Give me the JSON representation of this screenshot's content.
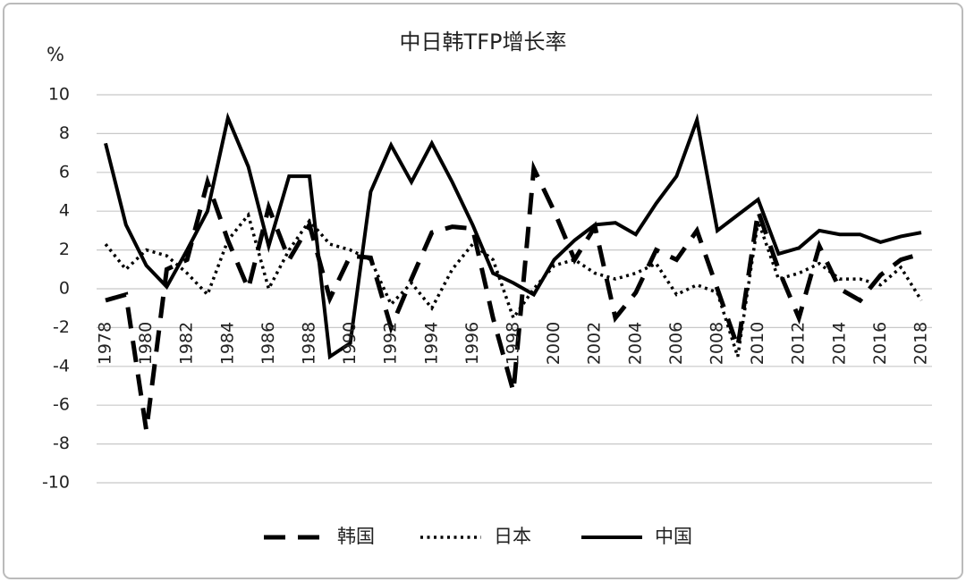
{
  "chart_data": {
    "type": "line",
    "title": "中日韩TFP增长率",
    "y_label": "%",
    "x": [
      1978,
      1979,
      1980,
      1981,
      1982,
      1983,
      1984,
      1985,
      1986,
      1987,
      1988,
      1989,
      1990,
      1991,
      1992,
      1993,
      1994,
      1995,
      1996,
      1997,
      1998,
      1999,
      2000,
      2001,
      2002,
      2003,
      2004,
      2005,
      2006,
      2007,
      2008,
      2009,
      2010,
      2011,
      2012,
      2013,
      2014,
      2015,
      2016,
      2017,
      2018
    ],
    "xlim": [
      1978,
      2018
    ],
    "xticks": [
      1978,
      1980,
      1982,
      1984,
      1986,
      1988,
      1990,
      1992,
      1994,
      1996,
      1998,
      2000,
      2002,
      2004,
      2006,
      2008,
      2010,
      2012,
      2014,
      2016,
      2018
    ],
    "ylim": [
      -10,
      10
    ],
    "yticks": [
      -10,
      -8,
      -6,
      -4,
      -2,
      0,
      2,
      4,
      6,
      8,
      10
    ],
    "grid": true,
    "legend": "bottom",
    "series": [
      {
        "name": "韩国",
        "color": "#000000",
        "dash": "dashed",
        "values": [
          -0.6,
          -0.3,
          -7.3,
          1.0,
          1.5,
          5.5,
          2.5,
          0.0,
          4.2,
          1.5,
          3.3,
          -0.5,
          1.7,
          1.6,
          -2.0,
          0.5,
          2.9,
          3.2,
          3.1,
          -1.5,
          -5.3,
          6.2,
          4.0,
          1.5,
          3.2,
          -1.5,
          -0.2,
          2.0,
          1.5,
          3.0,
          0.0,
          -3.0,
          4.0,
          1.0,
          -1.5,
          2.2,
          0.0,
          -0.6,
          0.7,
          1.5,
          1.8
        ]
      },
      {
        "name": "日本",
        "color": "#000000",
        "dash": "dotted",
        "values": [
          2.3,
          1.0,
          2.0,
          1.7,
          0.8,
          -0.3,
          2.5,
          3.8,
          0.0,
          2.0,
          3.5,
          2.3,
          2.0,
          1.5,
          -0.8,
          0.3,
          -1.0,
          1.0,
          2.3,
          1.5,
          -1.5,
          0.0,
          1.2,
          1.5,
          0.8,
          0.5,
          0.8,
          1.3,
          -0.3,
          0.2,
          -0.2,
          -3.5,
          3.5,
          0.5,
          0.8,
          1.3,
          0.5,
          0.5,
          0.2,
          1.1,
          -0.6
        ]
      },
      {
        "name": "中国",
        "color": "#000000",
        "dash": "solid",
        "values": [
          7.5,
          3.3,
          1.2,
          0.1,
          2.0,
          4.0,
          8.8,
          6.3,
          2.2,
          5.8,
          5.8,
          -3.5,
          -2.8,
          5.0,
          7.4,
          5.5,
          7.5,
          5.5,
          3.3,
          0.8,
          0.3,
          -0.3,
          1.5,
          2.5,
          3.3,
          3.4,
          2.8,
          4.4,
          5.8,
          8.7,
          3.0,
          3.8,
          4.6,
          1.8,
          2.1,
          3.0,
          2.8,
          2.8,
          2.4,
          2.7,
          2.9
        ]
      }
    ]
  }
}
